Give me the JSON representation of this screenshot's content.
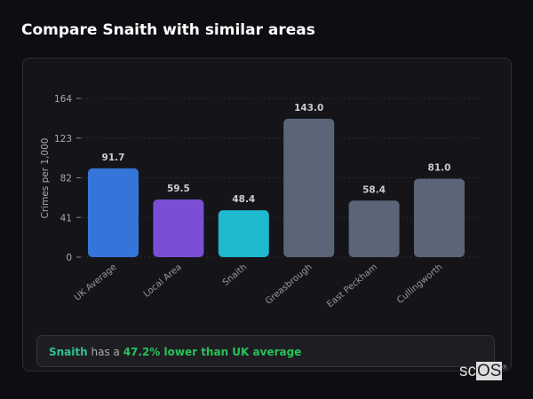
{
  "title": "Compare Snaith with similar areas",
  "chart_data": {
    "type": "bar",
    "categories": [
      "UK Average",
      "Local Area",
      "Snaith",
      "Greasbrough",
      "East Peckham",
      "Cullingworth"
    ],
    "values": [
      91.7,
      59.5,
      48.4,
      143.0,
      58.4,
      81.0
    ],
    "value_labels": [
      "91.7",
      "59.5",
      "48.4",
      "143.0",
      "58.4",
      "81.0"
    ],
    "colors": [
      "#3575d9",
      "#7a4fd6",
      "#1eb8cf",
      "#5a6577",
      "#5a6577",
      "#5a6577"
    ],
    "ylabel": "Crimes per 1,000",
    "yticks": [
      0,
      41,
      82,
      123,
      164
    ],
    "ylim": [
      0,
      164
    ],
    "grid": true
  },
  "summary": {
    "area": "Snaith",
    "middle": " has a ",
    "comparison": "47.2% lower than UK average"
  },
  "logo": {
    "a": "sc",
    "b": "OS",
    "mark": "®"
  }
}
